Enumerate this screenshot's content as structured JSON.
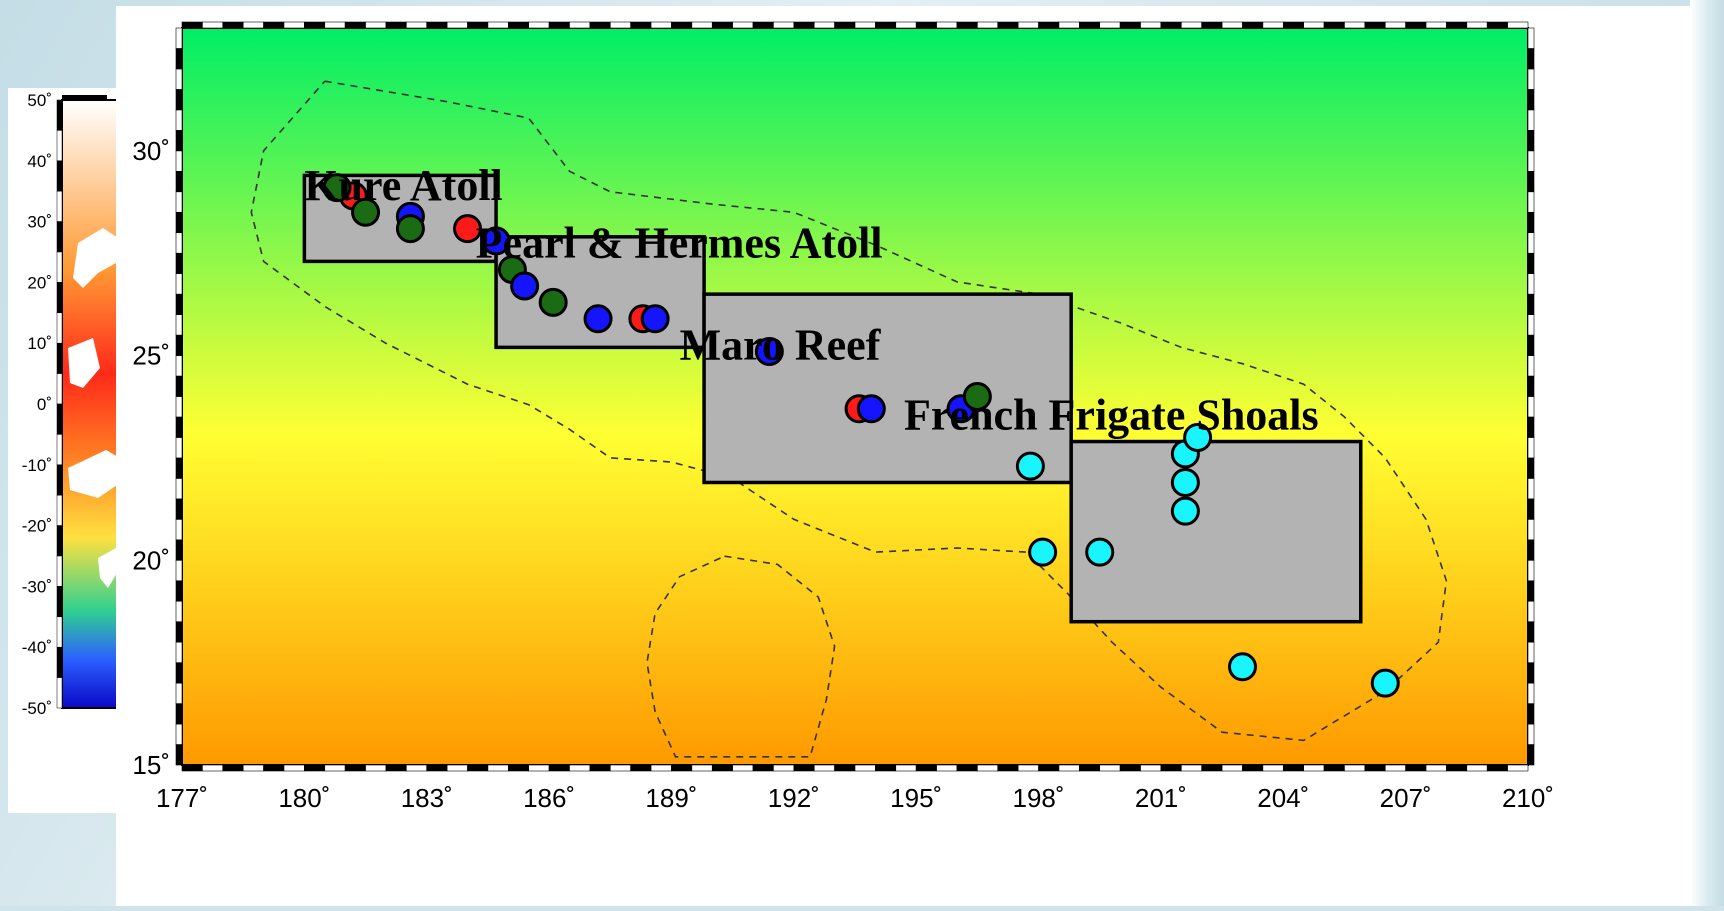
{
  "inset_map": {
    "lat_ticks": [
      "50˚",
      "40˚",
      "30˚",
      "20˚",
      "10˚",
      "0˚",
      "-10˚",
      "-20˚",
      "-30˚",
      "-40˚",
      "-50˚"
    ]
  },
  "main_map": {
    "x_ticks": [
      "177˚",
      "180˚",
      "183˚",
      "186˚",
      "189˚",
      "192˚",
      "195˚",
      "198˚",
      "201˚",
      "204˚",
      "207˚",
      "210˚"
    ],
    "y_ticks": [
      "15˚",
      "20˚",
      "25˚",
      "30˚"
    ],
    "colors": {
      "sea_top": "#00ee66",
      "sea_mid": "#ffff33",
      "sea_bottom": "#ff9900",
      "box_fill": "#b3b3b3",
      "red": "#ff1a1a",
      "blue": "#1414ff",
      "green": "#1a6b14",
      "cyan": "#19f5ff"
    },
    "regions": [
      {
        "name": "Kure Atoll",
        "lon": [
          180.0,
          184.7
        ],
        "lat": [
          27.3,
          29.4
        ]
      },
      {
        "name": "Pearl & Hermes Atoll",
        "lon": [
          184.7,
          189.8
        ],
        "lat": [
          25.2,
          27.9
        ]
      },
      {
        "name": "Maro Reef",
        "lon": [
          189.8,
          198.8
        ],
        "lat": [
          21.9,
          26.5
        ]
      },
      {
        "name": "French Frigate Shoals",
        "lon": [
          198.8,
          205.9
        ],
        "lat": [
          18.5,
          22.9
        ]
      }
    ],
    "labels": [
      {
        "text": "Kure Atoll",
        "lon": 180.0,
        "lat": 28.8
      },
      {
        "text": "Pearl & Hermes Atoll",
        "lon": 184.2,
        "lat": 27.4
      },
      {
        "text": "Maro Reef",
        "lon": 189.2,
        "lat": 24.9
      },
      {
        "text": "French Frigate Shoals",
        "lon": 194.7,
        "lat": 23.2
      }
    ],
    "points": [
      {
        "lon": 181.2,
        "lat": 28.9,
        "color": "red"
      },
      {
        "lon": 180.8,
        "lat": 29.1,
        "color": "green"
      },
      {
        "lon": 181.5,
        "lat": 28.5,
        "color": "green"
      },
      {
        "lon": 182.6,
        "lat": 28.4,
        "color": "blue"
      },
      {
        "lon": 182.6,
        "lat": 28.1,
        "color": "green"
      },
      {
        "lon": 184.0,
        "lat": 28.1,
        "color": "red"
      },
      {
        "lon": 184.7,
        "lat": 27.8,
        "color": "blue"
      },
      {
        "lon": 185.1,
        "lat": 27.1,
        "color": "green"
      },
      {
        "lon": 185.4,
        "lat": 26.7,
        "color": "blue"
      },
      {
        "lon": 186.1,
        "lat": 26.3,
        "color": "green"
      },
      {
        "lon": 187.2,
        "lat": 25.9,
        "color": "blue"
      },
      {
        "lon": 188.3,
        "lat": 25.9,
        "color": "red"
      },
      {
        "lon": 188.6,
        "lat": 25.9,
        "color": "blue"
      },
      {
        "lon": 191.4,
        "lat": 25.1,
        "color": "blue"
      },
      {
        "lon": 193.6,
        "lat": 23.7,
        "color": "red"
      },
      {
        "lon": 193.9,
        "lat": 23.7,
        "color": "blue"
      },
      {
        "lon": 196.1,
        "lat": 23.7,
        "color": "blue"
      },
      {
        "lon": 196.5,
        "lat": 24.0,
        "color": "green"
      },
      {
        "lon": 197.8,
        "lat": 22.3,
        "color": "cyan"
      },
      {
        "lon": 198.1,
        "lat": 20.2,
        "color": "cyan"
      },
      {
        "lon": 199.5,
        "lat": 20.2,
        "color": "cyan"
      },
      {
        "lon": 201.6,
        "lat": 22.6,
        "color": "cyan"
      },
      {
        "lon": 201.9,
        "lat": 23.0,
        "color": "cyan"
      },
      {
        "lon": 201.6,
        "lat": 21.9,
        "color": "cyan"
      },
      {
        "lon": 201.6,
        "lat": 21.2,
        "color": "cyan"
      },
      {
        "lon": 203.0,
        "lat": 17.4,
        "color": "cyan"
      },
      {
        "lon": 206.5,
        "lat": 17.0,
        "color": "cyan"
      }
    ],
    "contours": [
      [
        [
          180.5,
          31.7
        ],
        [
          183.5,
          31.2
        ],
        [
          185.5,
          30.8
        ],
        [
          186.5,
          29.5
        ],
        [
          187.5,
          29.0
        ],
        [
          190.0,
          28.7
        ],
        [
          192.0,
          28.5
        ],
        [
          194.0,
          27.7
        ],
        [
          196.0,
          26.8
        ],
        [
          198.0,
          26.5
        ],
        [
          200.0,
          25.8
        ],
        [
          201.5,
          25.2
        ],
        [
          203.0,
          24.8
        ],
        [
          204.5,
          24.3
        ],
        [
          205.5,
          23.5
        ],
        [
          206.5,
          22.5
        ],
        [
          207.5,
          21.0
        ],
        [
          208.0,
          19.5
        ],
        [
          207.8,
          18.0
        ],
        [
          206.5,
          16.8
        ],
        [
          204.5,
          15.6
        ],
        [
          202.5,
          15.8
        ],
        [
          201.0,
          16.9
        ],
        [
          199.8,
          18.0
        ],
        [
          198.7,
          19.2
        ],
        [
          197.7,
          20.2
        ],
        [
          196.0,
          20.3
        ],
        [
          194.0,
          20.2
        ],
        [
          192.0,
          21.0
        ],
        [
          190.5,
          22.0
        ],
        [
          189.0,
          22.4
        ],
        [
          187.5,
          22.5
        ],
        [
          186.5,
          23.2
        ],
        [
          185.5,
          23.8
        ],
        [
          184.0,
          24.3
        ],
        [
          182.0,
          25.3
        ],
        [
          180.5,
          26.2
        ],
        [
          179.0,
          27.3
        ],
        [
          178.7,
          28.5
        ],
        [
          179.0,
          30.0
        ],
        [
          180.5,
          31.7
        ]
      ],
      [
        [
          190.3,
          20.1
        ],
        [
          191.6,
          19.9
        ],
        [
          192.6,
          19.1
        ],
        [
          193.0,
          17.9
        ],
        [
          192.8,
          16.6
        ],
        [
          192.4,
          15.2
        ],
        [
          189.1,
          15.2
        ],
        [
          188.6,
          16.3
        ],
        [
          188.4,
          17.5
        ],
        [
          188.6,
          18.7
        ],
        [
          189.2,
          19.6
        ],
        [
          190.3,
          20.1
        ]
      ]
    ]
  }
}
